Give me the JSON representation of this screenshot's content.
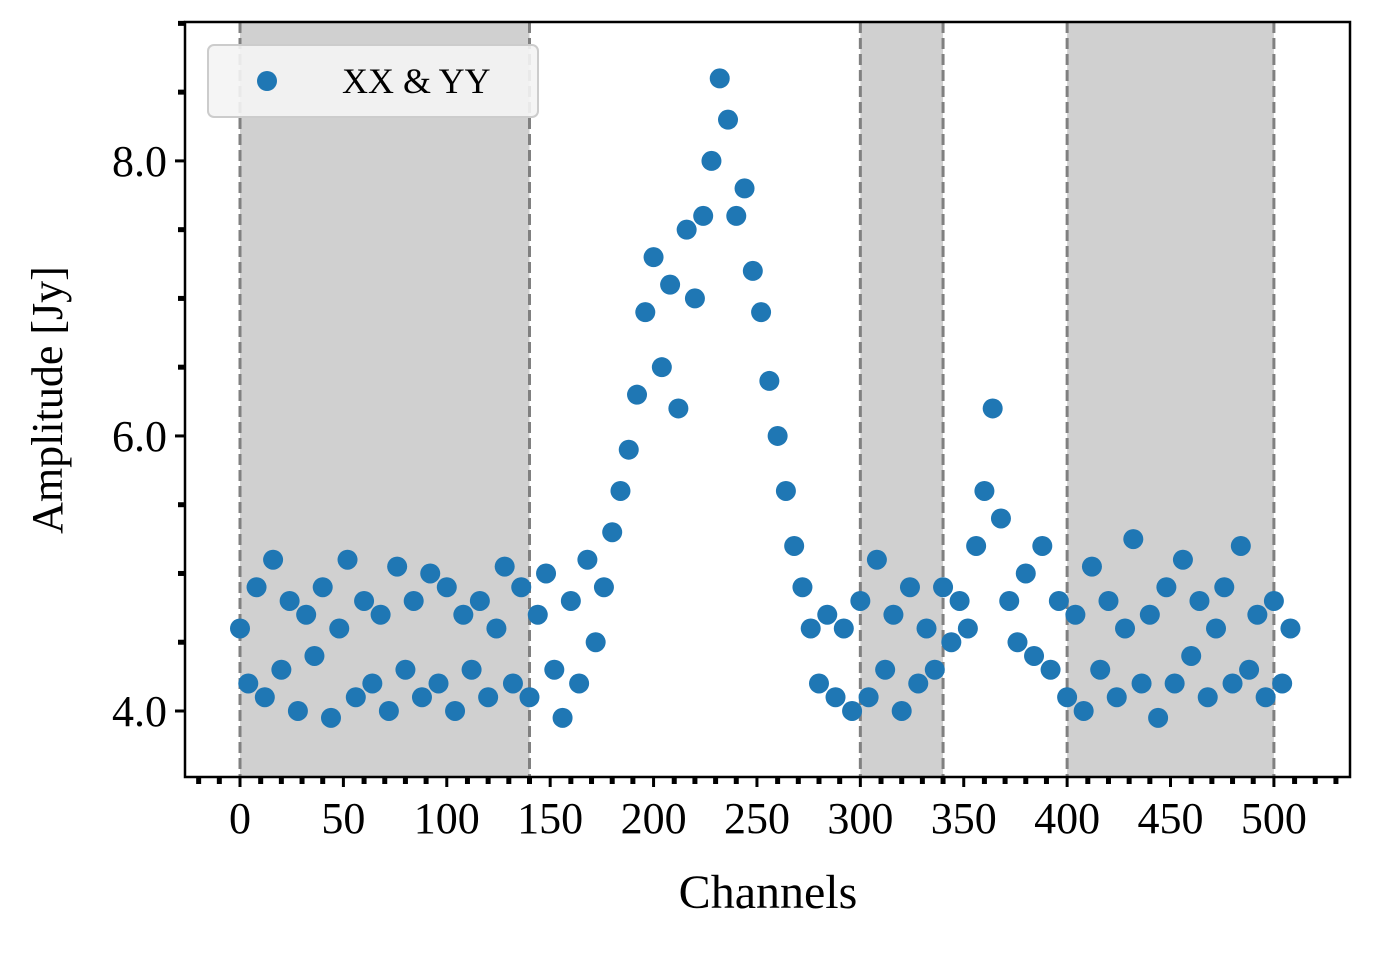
{
  "chart_data": {
    "type": "scatter",
    "xlabel": "Channels",
    "ylabel": "Amplitude [Jy]",
    "xlim": [
      -26.6,
      536.8
    ],
    "ylim": [
      3.52,
      9.01
    ],
    "xticks": [
      0,
      50,
      100,
      150,
      200,
      250,
      300,
      350,
      400,
      450,
      500
    ],
    "yticks": [
      {
        "value": 4,
        "label": "4.0"
      },
      {
        "value": 6,
        "label": "6.0"
      },
      {
        "value": 8,
        "label": "8.0"
      }
    ],
    "xminor_ticks": [
      -20,
      -10,
      10,
      20,
      30,
      40,
      60,
      70,
      80,
      90,
      110,
      120,
      130,
      140,
      160,
      170,
      180,
      190,
      210,
      220,
      230,
      240,
      260,
      270,
      280,
      290,
      310,
      320,
      330,
      340,
      360,
      370,
      380,
      390,
      410,
      420,
      430,
      440,
      460,
      470,
      480,
      490,
      510,
      520,
      530
    ],
    "yminor_ticks": [
      4.5,
      5,
      5.5,
      6.5,
      7,
      7.5,
      8.5,
      9
    ],
    "shaded_spans": [
      [
        0,
        140
      ],
      [
        300,
        340
      ],
      [
        400,
        500
      ]
    ],
    "span_color": "#d0d0d0",
    "span_edge_color": "#808080",
    "legend": "upper left",
    "series": [
      {
        "name": "XX & YY",
        "color": "#1f77b4",
        "x": [
          0,
          4,
          8,
          12,
          16,
          20,
          24,
          28,
          32,
          36,
          40,
          44,
          48,
          52,
          56,
          60,
          64,
          68,
          72,
          76,
          80,
          84,
          88,
          92,
          96,
          100,
          104,
          108,
          112,
          116,
          120,
          124,
          128,
          132,
          136,
          140,
          144,
          148,
          152,
          156,
          160,
          164,
          168,
          172,
          176,
          180,
          184,
          188,
          192,
          196,
          200,
          204,
          208,
          212,
          216,
          220,
          224,
          228,
          232,
          236,
          240,
          244,
          248,
          252,
          256,
          260,
          264,
          268,
          272,
          276,
          280,
          284,
          288,
          292,
          296,
          300,
          304,
          308,
          312,
          316,
          320,
          324,
          328,
          332,
          336,
          340,
          344,
          348,
          352,
          356,
          360,
          364,
          368,
          372,
          376,
          380,
          384,
          388,
          392,
          396,
          400,
          404,
          408,
          412,
          416,
          420,
          424,
          428,
          432,
          436,
          440,
          444,
          448,
          452,
          456,
          460,
          464,
          468,
          472,
          476,
          480,
          484,
          488,
          492,
          496,
          500,
          504,
          508
        ],
        "values": [
          4.6,
          4.2,
          4.9,
          4.1,
          5.1,
          4.3,
          4.8,
          4.0,
          4.7,
          4.4,
          4.9,
          3.95,
          4.6,
          5.1,
          4.1,
          4.8,
          4.2,
          4.7,
          4.0,
          5.05,
          4.3,
          4.8,
          4.1,
          5.0,
          4.2,
          4.9,
          4.0,
          4.7,
          4.3,
          4.8,
          4.1,
          4.6,
          5.05,
          4.2,
          4.9,
          4.1,
          4.7,
          5.0,
          4.3,
          3.95,
          4.8,
          4.2,
          5.1,
          4.5,
          4.9,
          5.3,
          5.6,
          5.9,
          6.3,
          6.9,
          7.3,
          6.5,
          7.1,
          6.2,
          7.5,
          7.0,
          7.6,
          8.0,
          8.6,
          8.3,
          7.6,
          7.8,
          7.2,
          6.9,
          6.4,
          6.0,
          5.6,
          5.2,
          4.9,
          4.6,
          4.2,
          4.7,
          4.1,
          4.6,
          4.0,
          4.8,
          4.1,
          5.1,
          4.3,
          4.7,
          4.0,
          4.9,
          4.2,
          4.6,
          4.3,
          4.9,
          4.5,
          4.8,
          4.6,
          5.2,
          5.6,
          6.2,
          5.4,
          4.8,
          4.5,
          5.0,
          4.4,
          5.2,
          4.3,
          4.8,
          4.1,
          4.7,
          4.0,
          5.05,
          4.3,
          4.8,
          4.1,
          4.6,
          5.25,
          4.2,
          4.7,
          3.95,
          4.9,
          4.2,
          5.1,
          4.4,
          4.8,
          4.1,
          4.6,
          4.9,
          4.2,
          5.2,
          4.3,
          4.7,
          4.1,
          4.8,
          4.2,
          4.6
        ]
      }
    ]
  }
}
